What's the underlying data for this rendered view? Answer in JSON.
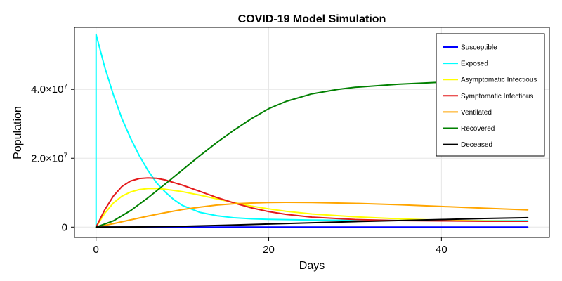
{
  "chart_data": {
    "type": "line",
    "title": "COVID-19 Model Simulation",
    "xlabel": "Days",
    "ylabel": "Population",
    "xlim": [
      -2.5,
      52.5
    ],
    "ylim": [
      -3000000,
      58000000
    ],
    "xticks": [
      {
        "value": 0,
        "label": "0"
      },
      {
        "value": 20,
        "label": "20"
      },
      {
        "value": 40,
        "label": "40"
      }
    ],
    "yticks": [
      {
        "value": 0,
        "label": "0",
        "mantissa": "0",
        "exponent": ""
      },
      {
        "value": 20000000,
        "label": "2.0×10^7",
        "mantissa": "2.0×10",
        "exponent": "7"
      },
      {
        "value": 40000000,
        "label": "4.0×10^7",
        "mantissa": "4.0×10",
        "exponent": "7"
      }
    ],
    "grid": true,
    "legend_position": "top-right",
    "series": [
      {
        "name": "Susceptible",
        "color": "#0000ff",
        "points": [
          [
            0,
            0
          ],
          [
            10,
            0
          ],
          [
            20,
            0
          ],
          [
            30,
            0
          ],
          [
            40,
            0
          ],
          [
            50,
            0
          ]
        ]
      },
      {
        "name": "Exposed",
        "color": "#00ffff",
        "points": [
          [
            0,
            0
          ],
          [
            0,
            56000000
          ],
          [
            1,
            46500000
          ],
          [
            2,
            38500000
          ],
          [
            3,
            31500000
          ],
          [
            4,
            25800000
          ],
          [
            5,
            20800000
          ],
          [
            6,
            16500000
          ],
          [
            7,
            12900000
          ],
          [
            8,
            10200000
          ],
          [
            9,
            8000000
          ],
          [
            10,
            6300000
          ],
          [
            12,
            4300000
          ],
          [
            14,
            3300000
          ],
          [
            16,
            2700000
          ],
          [
            18,
            2400000
          ],
          [
            20,
            2250000
          ],
          [
            25,
            2050000
          ],
          [
            30,
            1950000
          ],
          [
            40,
            1870000
          ],
          [
            50,
            1850000
          ]
        ]
      },
      {
        "name": "Asymptomatic Infectious",
        "color": "#ffff00",
        "points": [
          [
            0,
            0
          ],
          [
            1,
            4000000
          ],
          [
            2,
            7000000
          ],
          [
            3,
            9000000
          ],
          [
            4,
            10200000
          ],
          [
            5,
            10900000
          ],
          [
            6,
            11200000
          ],
          [
            7,
            11200000
          ],
          [
            8,
            11000000
          ],
          [
            10,
            10300000
          ],
          [
            12,
            9300000
          ],
          [
            14,
            8200000
          ],
          [
            16,
            7100000
          ],
          [
            18,
            6100000
          ],
          [
            20,
            5300000
          ],
          [
            22,
            4600000
          ],
          [
            25,
            3800000
          ],
          [
            30,
            3000000
          ],
          [
            35,
            2400000
          ],
          [
            40,
            2000000
          ],
          [
            45,
            1800000
          ],
          [
            50,
            1700000
          ]
        ]
      },
      {
        "name": "Symptomatic Infectious",
        "color": "#e41a1c",
        "points": [
          [
            0,
            0
          ],
          [
            1,
            5000000
          ],
          [
            2,
            9000000
          ],
          [
            3,
            11800000
          ],
          [
            4,
            13400000
          ],
          [
            5,
            14100000
          ],
          [
            6,
            14300000
          ],
          [
            7,
            14200000
          ],
          [
            8,
            13700000
          ],
          [
            10,
            12200000
          ],
          [
            12,
            10400000
          ],
          [
            14,
            8600000
          ],
          [
            16,
            7000000
          ],
          [
            18,
            5600000
          ],
          [
            20,
            4500000
          ],
          [
            22,
            3700000
          ],
          [
            25,
            2900000
          ],
          [
            30,
            2200000
          ],
          [
            35,
            1900000
          ],
          [
            40,
            1800000
          ],
          [
            45,
            1700000
          ],
          [
            50,
            1700000
          ]
        ]
      },
      {
        "name": "Ventilated",
        "color": "#ffa500",
        "points": [
          [
            0,
            0
          ],
          [
            2,
            1000000
          ],
          [
            4,
            2100000
          ],
          [
            6,
            3200000
          ],
          [
            8,
            4200000
          ],
          [
            10,
            5100000
          ],
          [
            12,
            5800000
          ],
          [
            14,
            6400000
          ],
          [
            16,
            6800000
          ],
          [
            18,
            7000000
          ],
          [
            20,
            7150000
          ],
          [
            22,
            7200000
          ],
          [
            25,
            7150000
          ],
          [
            30,
            6900000
          ],
          [
            35,
            6500000
          ],
          [
            40,
            6000000
          ],
          [
            45,
            5500000
          ],
          [
            50,
            5000000
          ]
        ]
      },
      {
        "name": "Recovered",
        "color": "#008000",
        "points": [
          [
            0,
            0
          ],
          [
            2,
            1800000
          ],
          [
            4,
            4800000
          ],
          [
            6,
            8500000
          ],
          [
            8,
            12500000
          ],
          [
            10,
            16600000
          ],
          [
            12,
            20700000
          ],
          [
            14,
            24600000
          ],
          [
            16,
            28200000
          ],
          [
            18,
            31500000
          ],
          [
            20,
            34400000
          ],
          [
            22,
            36500000
          ],
          [
            25,
            38700000
          ],
          [
            28,
            40000000
          ],
          [
            30,
            40600000
          ],
          [
            35,
            41500000
          ],
          [
            40,
            42100000
          ],
          [
            45,
            42400000
          ],
          [
            50,
            42600000
          ]
        ]
      },
      {
        "name": "Deceased",
        "color": "#000000",
        "points": [
          [
            0,
            0
          ],
          [
            5,
            50000
          ],
          [
            10,
            250000
          ],
          [
            15,
            550000
          ],
          [
            20,
            900000
          ],
          [
            25,
            1250000
          ],
          [
            30,
            1600000
          ],
          [
            35,
            1900000
          ],
          [
            40,
            2200000
          ],
          [
            45,
            2500000
          ],
          [
            50,
            2750000
          ]
        ]
      }
    ]
  }
}
